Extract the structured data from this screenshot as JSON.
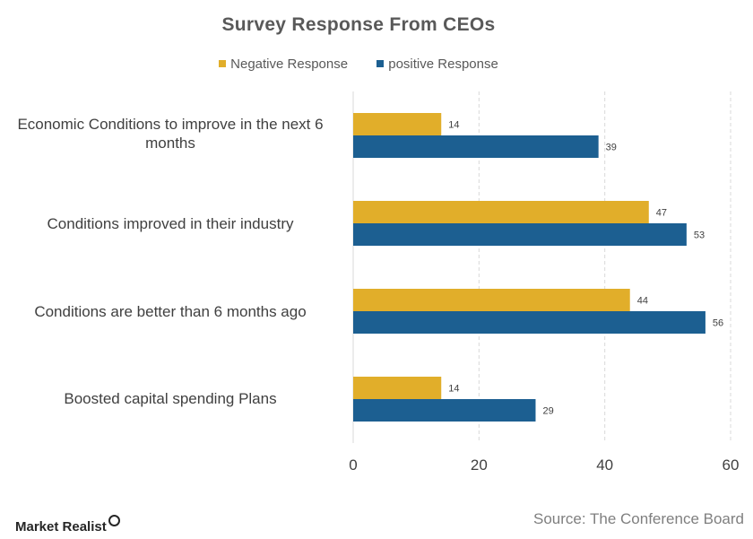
{
  "chart_data": {
    "type": "bar",
    "orientation": "horizontal",
    "title": "Survey Response From CEOs",
    "categories": [
      "Economic Conditions to improve in the next 6 months",
      "Conditions improved in their industry",
      "Conditions are better than 6 months ago",
      "Boosted capital spending Plans"
    ],
    "series": [
      {
        "name": "Negative Response",
        "color": "#E1AE2A",
        "values": [
          14,
          47,
          44,
          14
        ]
      },
      {
        "name": "positive Response",
        "color": "#1C5F91",
        "values": [
          39,
          53,
          56,
          29
        ]
      }
    ],
    "xlim": [
      0,
      60
    ],
    "xticks": [
      0,
      20,
      40,
      60
    ],
    "xlabel": "",
    "ylabel": "",
    "grid": "vertical-dashed",
    "legend_position": "top"
  },
  "footer": {
    "source": "Source: The Conference Board",
    "brand": "Market Realist",
    "brand_icon": "magnifier-icon"
  }
}
